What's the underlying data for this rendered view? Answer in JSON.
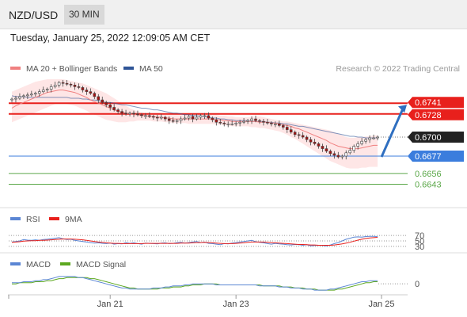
{
  "header": {
    "symbol": "NZD/USD",
    "timeframe": "30 MIN"
  },
  "date_line": "Tuesday, January 25, 2022 12:09:05 AM CET",
  "colors": {
    "ma20": "#f08080",
    "ma50": "#2f5597",
    "band_fill": "#fddede",
    "resistance": "#e8201c",
    "pivot": "#3b7ddd",
    "support": "#5ca84a",
    "candle_up": "#ffffff",
    "candle_down": "#a81010",
    "rsi": "#5b86d4",
    "ma9": "#e8201c",
    "macd": "#5b86d4",
    "macd_signal": "#5ca81f",
    "last_price_bg": "#222222",
    "arrow": "#2f6fc0"
  },
  "chart_data": [
    {
      "type": "candlestick",
      "title": "",
      "legend": [
        {
          "name": "MA 20 + Bollinger Bands",
          "color": "#f08080"
        },
        {
          "name": "MA 50",
          "color": "#2f5597"
        }
      ],
      "credit": "Research © 2022 Trading Central",
      "ylim": [
        0.663,
        0.677
      ],
      "x_ticks": [
        {
          "label": "Jan 21",
          "index": 25
        },
        {
          "label": "Jan 23",
          "index": 57
        },
        {
          "label": "Jan 25",
          "index": 94
        }
      ],
      "levels": [
        {
          "value": 0.6741,
          "label": "0.6741",
          "kind": "resistance"
        },
        {
          "value": 0.6728,
          "label": "0.6728",
          "kind": "resistance"
        },
        {
          "value": 0.67,
          "label": "0.6700",
          "kind": "last"
        },
        {
          "value": 0.6677,
          "label": "0.6677",
          "kind": "pivot"
        },
        {
          "value": 0.6656,
          "label": "0.6656",
          "kind": "support"
        },
        {
          "value": 0.6643,
          "label": "0.6643",
          "kind": "support"
        }
      ],
      "closes": [
        0.6746,
        0.6747,
        0.6749,
        0.675,
        0.6751,
        0.6752,
        0.6753,
        0.6755,
        0.6757,
        0.6758,
        0.6761,
        0.6763,
        0.6766,
        0.6765,
        0.6764,
        0.6763,
        0.6761,
        0.676,
        0.6757,
        0.6755,
        0.6753,
        0.6749,
        0.6745,
        0.6742,
        0.6739,
        0.6736,
        0.6733,
        0.6731,
        0.6729,
        0.6728,
        0.6729,
        0.6728,
        0.6727,
        0.6726,
        0.6726,
        0.6725,
        0.6724,
        0.6723,
        0.6724,
        0.6722,
        0.672,
        0.6719,
        0.672,
        0.6722,
        0.6723,
        0.6725,
        0.6722,
        0.6724,
        0.6726,
        0.6726,
        0.6723,
        0.6721,
        0.6718,
        0.6717,
        0.6716,
        0.6716,
        0.6716,
        0.6717,
        0.6718,
        0.6719,
        0.672,
        0.6722,
        0.672,
        0.6719,
        0.6718,
        0.6717,
        0.6716,
        0.6716,
        0.6714,
        0.6712,
        0.6709,
        0.6706,
        0.6703,
        0.6702,
        0.67,
        0.6697,
        0.6694,
        0.6692,
        0.6689,
        0.6686,
        0.6683,
        0.668,
        0.6678,
        0.6676,
        0.6677,
        0.6681,
        0.6684,
        0.6689,
        0.6692,
        0.6695,
        0.6697,
        0.6699,
        0.6699,
        0.67
      ],
      "ma20": [
        0.6735,
        0.6738,
        0.674,
        0.6742,
        0.6744,
        0.6746,
        0.6748,
        0.675,
        0.6752,
        0.6754,
        0.6755,
        0.6756,
        0.6757,
        0.6757,
        0.6756,
        0.6755,
        0.6754,
        0.6752,
        0.675,
        0.6748,
        0.6745,
        0.6743,
        0.6741,
        0.6739,
        0.6737,
        0.6735,
        0.6733,
        0.6731,
        0.673,
        0.6729,
        0.6728,
        0.6727,
        0.6727,
        0.6726,
        0.6726,
        0.6725,
        0.6725,
        0.6724,
        0.6724,
        0.6723,
        0.6723,
        0.6722,
        0.6722,
        0.6722,
        0.6722,
        0.6722,
        0.6722,
        0.6722,
        0.6722,
        0.6722,
        0.6722,
        0.6722,
        0.6721,
        0.6721,
        0.672,
        0.672,
        0.6719,
        0.6719,
        0.6719,
        0.6719,
        0.6719,
        0.6719,
        0.6719,
        0.6718,
        0.6718,
        0.6718,
        0.6717,
        0.6717,
        0.6716,
        0.6715,
        0.6714,
        0.6713,
        0.6711,
        0.671,
        0.6708,
        0.6706,
        0.6704,
        0.6702,
        0.67,
        0.6698,
        0.6696,
        0.6693,
        0.6691,
        0.6689,
        0.6688,
        0.6687,
        0.6686,
        0.6686,
        0.6686,
        0.6687,
        0.6688,
        0.6689,
        0.669,
        0.669
      ],
      "bb_upper": [
        0.6755,
        0.6757,
        0.6759,
        0.6761,
        0.6763,
        0.6765,
        0.6767,
        0.6768,
        0.6769,
        0.677,
        0.677,
        0.677,
        0.677,
        0.677,
        0.6769,
        0.6768,
        0.6767,
        0.6766,
        0.6765,
        0.6763,
        0.6761,
        0.6759,
        0.6757,
        0.6755,
        0.6753,
        0.675,
        0.6747,
        0.6744,
        0.6741,
        0.6738,
        0.6735,
        0.6733,
        0.6731,
        0.673,
        0.6729,
        0.6729,
        0.6729,
        0.6729,
        0.6729,
        0.6728,
        0.6728,
        0.6728,
        0.6728,
        0.6728,
        0.6728,
        0.6729,
        0.6729,
        0.6729,
        0.6729,
        0.6729,
        0.6729,
        0.6728,
        0.6727,
        0.6726,
        0.6726,
        0.6725,
        0.6725,
        0.6724,
        0.6724,
        0.6724,
        0.6724,
        0.6725,
        0.6725,
        0.6725,
        0.6724,
        0.6723,
        0.6722,
        0.6721,
        0.672,
        0.6719,
        0.6719,
        0.6718,
        0.6717,
        0.6716,
        0.6715,
        0.6714,
        0.6713,
        0.6712,
        0.6711,
        0.671,
        0.6709,
        0.6708,
        0.6706,
        0.6704,
        0.6702,
        0.67,
        0.6699,
        0.6699,
        0.67,
        0.67,
        0.6701,
        0.6701,
        0.6702,
        0.6702
      ],
      "bb_lower": [
        0.6718,
        0.672,
        0.6722,
        0.6724,
        0.6726,
        0.6728,
        0.673,
        0.6732,
        0.6734,
        0.6736,
        0.6738,
        0.674,
        0.6741,
        0.6741,
        0.674,
        0.6739,
        0.6738,
        0.6736,
        0.6734,
        0.6732,
        0.6729,
        0.6727,
        0.6725,
        0.6723,
        0.6721,
        0.672,
        0.6719,
        0.6718,
        0.6718,
        0.6718,
        0.6719,
        0.6719,
        0.672,
        0.672,
        0.672,
        0.672,
        0.6719,
        0.6719,
        0.6719,
        0.6718,
        0.6718,
        0.6717,
        0.6717,
        0.6717,
        0.6717,
        0.6716,
        0.6716,
        0.6716,
        0.6716,
        0.6716,
        0.6716,
        0.6716,
        0.6715,
        0.6715,
        0.6714,
        0.6714,
        0.6713,
        0.6713,
        0.6713,
        0.6713,
        0.6713,
        0.6712,
        0.6712,
        0.6711,
        0.6711,
        0.671,
        0.6709,
        0.6708,
        0.6707,
        0.6705,
        0.6703,
        0.67,
        0.6698,
        0.6695,
        0.6692,
        0.6689,
        0.6686,
        0.6683,
        0.668,
        0.6677,
        0.6674,
        0.6671,
        0.6669,
        0.6667,
        0.6665,
        0.6663,
        0.6662,
        0.6662,
        0.6662,
        0.6663,
        0.6663,
        0.6664,
        0.6664,
        0.6664
      ],
      "ma50": [
        0.675,
        0.6749,
        0.6749,
        0.6749,
        0.6748,
        0.6748,
        0.6748,
        0.6748,
        0.6748,
        0.6748,
        0.6748,
        0.6748,
        0.6748,
        0.6748,
        0.6748,
        0.6747,
        0.6747,
        0.6747,
        0.6746,
        0.6746,
        0.6745,
        0.6745,
        0.6744,
        0.6743,
        0.6742,
        0.6742,
        0.6741,
        0.674,
        0.6739,
        0.6739,
        0.6738,
        0.6737,
        0.6736,
        0.6735,
        0.6735,
        0.6734,
        0.6733,
        0.6733,
        0.6732,
        0.6731,
        0.673,
        0.6729,
        0.6729,
        0.6728,
        0.6727,
        0.6727,
        0.6726,
        0.6726,
        0.6725,
        0.6725,
        0.6724,
        0.6723,
        0.6723,
        0.6722,
        0.6722,
        0.6721,
        0.6721,
        0.672,
        0.672,
        0.672,
        0.672,
        0.6719,
        0.6719,
        0.6719,
        0.6719,
        0.6718,
        0.6718,
        0.6717,
        0.6717,
        0.6716,
        0.6716,
        0.6715,
        0.6714,
        0.6713,
        0.6713,
        0.6712,
        0.6711,
        0.671,
        0.6709,
        0.6708,
        0.6707,
        0.6706,
        0.6705,
        0.6704,
        0.6703,
        0.6702,
        0.6701,
        0.6701,
        0.67,
        0.67,
        0.6699,
        0.6699,
        0.6699,
        0.6699
      ]
    },
    {
      "type": "line",
      "legend": [
        {
          "name": "RSI",
          "color": "#5b86d4"
        },
        {
          "name": "9MA",
          "color": "#e8201c"
        }
      ],
      "ylim": [
        15,
        85
      ],
      "ticks": [
        {
          "value": 70,
          "label": "70"
        },
        {
          "value": 50,
          "label": "50"
        },
        {
          "value": 30,
          "label": "30"
        }
      ],
      "rsi": [
        46,
        48,
        50,
        55,
        53,
        52,
        54,
        52,
        55,
        56,
        58,
        60,
        62,
        58,
        55,
        56,
        52,
        50,
        48,
        46,
        44,
        42,
        43,
        41,
        40,
        42,
        38,
        40,
        39,
        44,
        41,
        43,
        40,
        38,
        42,
        41,
        40,
        39,
        42,
        43,
        40,
        41,
        44,
        45,
        42,
        44,
        46,
        48,
        44,
        46,
        41,
        40,
        38,
        36,
        40,
        39,
        42,
        44,
        46,
        48,
        50,
        52,
        47,
        45,
        43,
        40,
        38,
        41,
        39,
        38,
        36,
        35,
        37,
        36,
        34,
        36,
        32,
        33,
        34,
        33,
        32,
        35,
        40,
        44,
        50,
        56,
        60,
        64,
        65,
        64,
        66,
        67,
        67,
        66
      ],
      "ma9": [
        45,
        46,
        47,
        49,
        50,
        51,
        51,
        52,
        52,
        53,
        54,
        55,
        56,
        57,
        57,
        57,
        56,
        55,
        54,
        52,
        50,
        48,
        46,
        45,
        43,
        42,
        41,
        41,
        40,
        40,
        40,
        40,
        40,
        40,
        41,
        41,
        41,
        41,
        41,
        41,
        41,
        41,
        41,
        42,
        42,
        42,
        43,
        44,
        44,
        45,
        44,
        43,
        42,
        41,
        40,
        40,
        40,
        41,
        42,
        43,
        45,
        46,
        46,
        46,
        46,
        45,
        44,
        43,
        42,
        41,
        40,
        39,
        38,
        37,
        37,
        36,
        35,
        35,
        34,
        34,
        34,
        34,
        35,
        37,
        39,
        42,
        45,
        49,
        53,
        56,
        59,
        61,
        62,
        63
      ]
    },
    {
      "type": "line",
      "legend": [
        {
          "name": "MACD",
          "color": "#5b86d4"
        },
        {
          "name": "MACD Signal",
          "color": "#5ca81f"
        }
      ],
      "ylim": [
        -0.0009,
        0.001
      ],
      "ticks": [
        {
          "value": 0,
          "label": "0"
        }
      ],
      "macd": [
        0.0001,
        0.0001,
        0.0001,
        0.0002,
        0.0002,
        0.0002,
        0.0003,
        0.0003,
        0.0004,
        0.0004,
        0.0005,
        0.0006,
        0.0007,
        0.0007,
        0.0007,
        0.0007,
        0.0007,
        0.0006,
        0.0006,
        0.0005,
        0.0004,
        0.0003,
        0.0002,
        0.0001,
        0.0,
        -0.0001,
        -0.0002,
        -0.0003,
        -0.0004,
        -0.0004,
        -0.0005,
        -0.0005,
        -0.0005,
        -0.0005,
        -0.0005,
        -0.0005,
        -0.0004,
        -0.0004,
        -0.0004,
        -0.0003,
        -0.0003,
        -0.0002,
        -0.0002,
        -0.0002,
        -0.0001,
        -0.0001,
        0.0,
        0.0,
        0.0,
        0.0,
        0.0,
        0.0,
        -0.0001,
        -0.0001,
        -0.0001,
        -0.0001,
        -0.0001,
        -0.0001,
        -0.0001,
        -0.0001,
        -0.0001,
        -0.0001,
        -0.0001,
        -0.0002,
        -0.0002,
        -0.0002,
        -0.0002,
        -0.0002,
        -0.0003,
        -0.0003,
        -0.0003,
        -0.0004,
        -0.0004,
        -0.0004,
        -0.0005,
        -0.0005,
        -0.0005,
        -0.0006,
        -0.0006,
        -0.0006,
        -0.0006,
        -0.0005,
        -0.0005,
        -0.0004,
        -0.0003,
        -0.0002,
        -0.0001,
        0.0,
        0.0001,
        0.0002,
        0.0002,
        0.0003,
        0.0003,
        0.0003
      ],
      "signal": [
        0.0,
        0.0,
        0.0001,
        0.0001,
        0.0001,
        0.0001,
        0.0002,
        0.0002,
        0.0002,
        0.0003,
        0.0003,
        0.0004,
        0.0005,
        0.0005,
        0.0006,
        0.0006,
        0.0006,
        0.0006,
        0.0006,
        0.0006,
        0.0005,
        0.0005,
        0.0004,
        0.0003,
        0.0002,
        0.0001,
        0.0,
        -0.0001,
        -0.0002,
        -0.0003,
        -0.0004,
        -0.0004,
        -0.0005,
        -0.0005,
        -0.0005,
        -0.0005,
        -0.0005,
        -0.0005,
        -0.0004,
        -0.0004,
        -0.0004,
        -0.0003,
        -0.0003,
        -0.0003,
        -0.0002,
        -0.0002,
        -0.0001,
        -0.0001,
        -0.0001,
        0.0,
        0.0,
        0.0,
        0.0,
        -0.0001,
        -0.0001,
        -0.0001,
        -0.0001,
        -0.0001,
        -0.0001,
        -0.0001,
        -0.0001,
        -0.0001,
        -0.0001,
        -0.0001,
        -0.0002,
        -0.0002,
        -0.0002,
        -0.0002,
        -0.0002,
        -0.0003,
        -0.0003,
        -0.0003,
        -0.0004,
        -0.0004,
        -0.0004,
        -0.0005,
        -0.0005,
        -0.0005,
        -0.0006,
        -0.0006,
        -0.0006,
        -0.0006,
        -0.0006,
        -0.0005,
        -0.0005,
        -0.0004,
        -0.0003,
        -0.0002,
        -0.0001,
        0.0,
        0.0001,
        0.0001,
        0.0002,
        0.0002
      ]
    }
  ]
}
